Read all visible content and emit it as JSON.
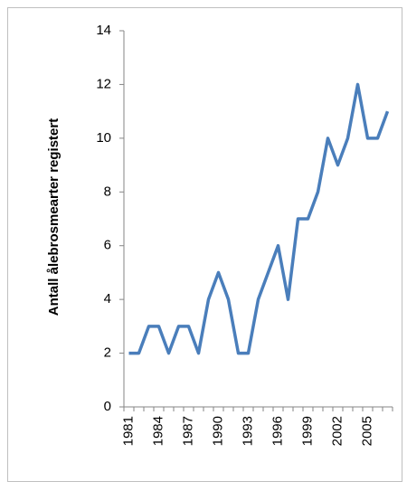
{
  "chart_data": {
    "type": "line",
    "y_label": "Antall ålebrosmearter registert",
    "categories": [
      "1981",
      null,
      null,
      "1984",
      null,
      null,
      "1987",
      null,
      null,
      "1990",
      null,
      null,
      "1993",
      null,
      null,
      "1996",
      null,
      null,
      "1999",
      null,
      null,
      "2002",
      null,
      null,
      "2005",
      null,
      null
    ],
    "values": [
      2,
      2,
      3,
      3,
      2,
      3,
      3,
      2,
      4,
      5,
      4,
      2,
      2,
      4,
      5,
      6,
      4,
      7,
      7,
      8,
      10,
      9,
      10,
      12,
      10,
      10,
      11
    ],
    "color": "#4a7ebb",
    "ylim": [
      0,
      14
    ],
    "yticks": [
      0,
      2,
      4,
      6,
      8,
      10,
      12,
      14
    ],
    "grid": false
  }
}
